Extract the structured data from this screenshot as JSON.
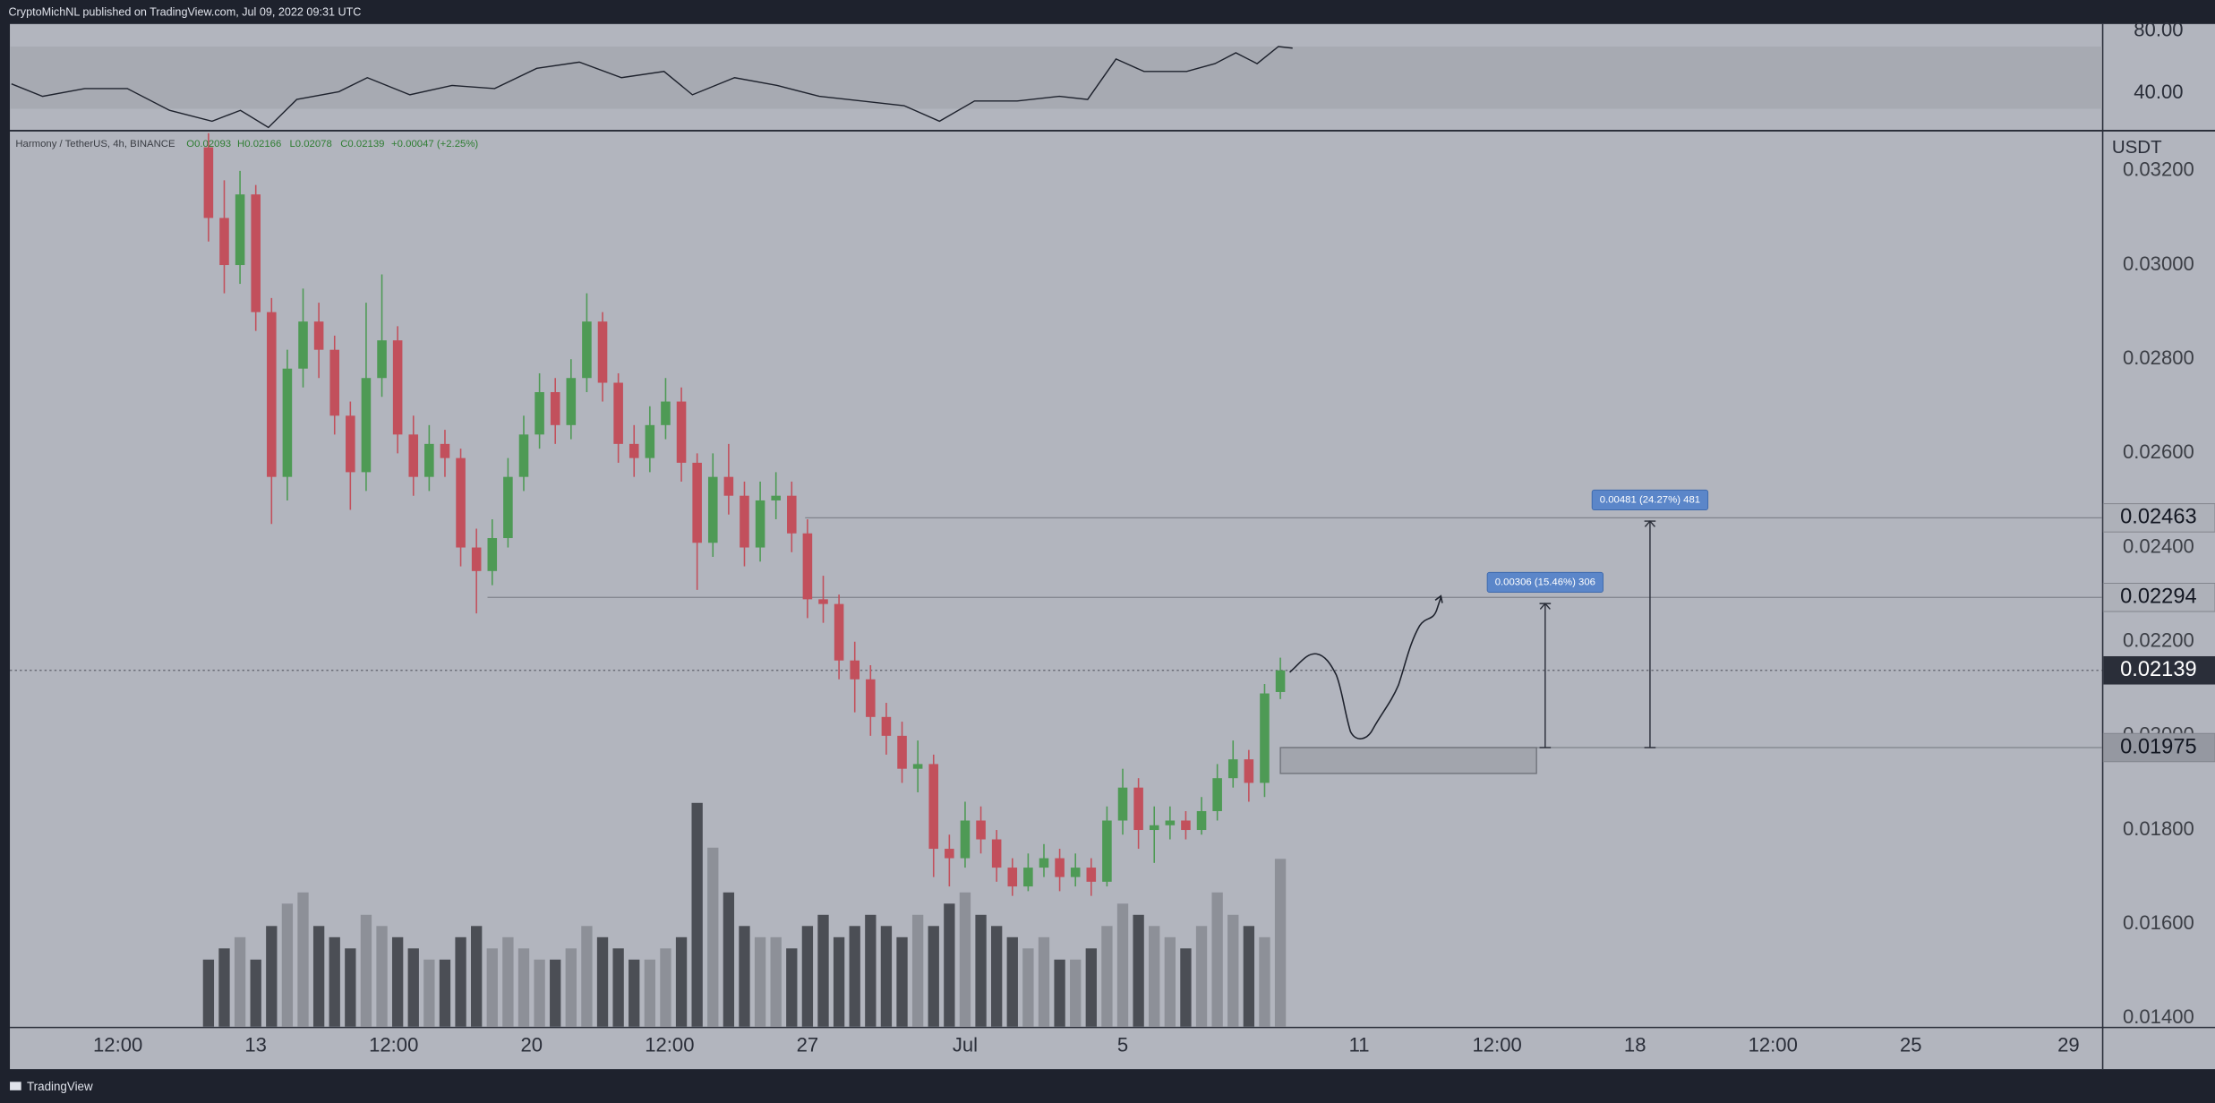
{
  "header": {
    "publisher": "CryptoMichNL published on TradingView.com, Jul 09, 2022 09:31 UTC",
    "footer": "TradingView"
  },
  "chart_data": [
    {
      "type": "line",
      "color": "#1e222d",
      "x": [
        6.8,
        7.59,
        8.66,
        9.74,
        10.81,
        11.89,
        12.61,
        13.32,
        14.04,
        15.11,
        15.83,
        16.91,
        17.98,
        19.06,
        20.13,
        21.21,
        22.28,
        23.36,
        24.08,
        25.15,
        26.23,
        27.3,
        28.38,
        29.45,
        30.35,
        31.24,
        32.32,
        33.39,
        34.11,
        34.83,
        35.54,
        36.62,
        37.34,
        37.87,
        38.41,
        38.95,
        39.31
      ],
      "values": [
        46,
        38,
        43,
        43,
        29,
        22,
        29,
        18,
        36,
        41,
        50,
        39,
        45,
        43,
        56,
        60,
        50,
        54,
        39,
        50,
        45,
        38,
        35,
        32,
        22,
        35,
        35,
        38,
        36,
        62,
        54,
        54,
        59,
        66,
        59,
        70,
        69
      ],
      "xlim": [
        6.76,
        59.85
      ],
      "ylim": [
        16.4,
        84.5
      ],
      "yticks": [
        {
          "value": 80,
          "label": "80.00"
        },
        {
          "value": 40,
          "label": "40.00"
        }
      ],
      "band": [
        30,
        70
      ],
      "band_color": "#a7aab2"
    },
    {
      "type": "candlestick",
      "legend": {
        "symbol": "Harmony / TetherUS, 4h, BINANCE",
        "open": "O0.02093",
        "high": "H0.02166",
        "low": "L0.02078",
        "close": "C0.02139",
        "change": "+0.00047 (+2.25%)"
      },
      "axis_label": "USDT",
      "up_color": "#4e9a55",
      "down_color": "#c2505c",
      "volume_up_color": "#8d9098",
      "volume_down_color": "#4b4e55",
      "grid": false,
      "x": [
        11.8,
        12.2,
        12.6,
        13.0,
        13.4,
        13.8,
        14.2,
        14.6,
        15.0,
        15.4,
        15.8,
        16.2,
        16.6,
        17.0,
        17.4,
        17.8,
        18.2,
        18.6,
        19.0,
        19.4,
        19.8,
        20.2,
        20.6,
        21.0,
        21.4,
        21.8,
        22.2,
        22.6,
        23.0,
        23.4,
        23.8,
        24.2,
        24.6,
        25.0,
        25.4,
        25.8,
        26.2,
        26.6,
        27.0,
        27.4,
        27.8,
        28.2,
        28.6,
        29.0,
        29.4,
        29.8,
        30.2,
        30.6,
        31.0,
        31.4,
        31.8,
        32.2,
        32.6,
        33.0,
        33.4,
        33.8,
        34.2,
        34.6,
        35.0,
        35.4,
        35.8,
        36.2,
        36.6,
        37.0,
        37.4,
        37.8,
        38.2,
        38.6,
        39.0
      ],
      "open": [
        0.0325,
        0.031,
        0.03,
        0.0315,
        0.029,
        0.0255,
        0.0278,
        0.0288,
        0.0282,
        0.0268,
        0.0256,
        0.0276,
        0.0284,
        0.0264,
        0.0255,
        0.0262,
        0.0259,
        0.024,
        0.0235,
        0.0242,
        0.0255,
        0.0264,
        0.0273,
        0.0266,
        0.0276,
        0.0288,
        0.0275,
        0.0262,
        0.0259,
        0.0266,
        0.0271,
        0.0258,
        0.0241,
        0.0255,
        0.0251,
        0.024,
        0.025,
        0.0251,
        0.0243,
        0.0229,
        0.0228,
        0.0216,
        0.0212,
        0.0204,
        0.02,
        0.0193,
        0.0194,
        0.0176,
        0.0174,
        0.0182,
        0.0178,
        0.0172,
        0.0168,
        0.0172,
        0.0174,
        0.017,
        0.0172,
        0.0169,
        0.0182,
        0.0189,
        0.018,
        0.0181,
        0.0182,
        0.018,
        0.0184,
        0.0191,
        0.0195,
        0.019,
        0.02093
      ],
      "high": [
        0.0328,
        0.0318,
        0.032,
        0.0317,
        0.0293,
        0.0282,
        0.0295,
        0.0292,
        0.0285,
        0.0271,
        0.0292,
        0.0298,
        0.0287,
        0.0268,
        0.0266,
        0.0265,
        0.0261,
        0.0244,
        0.0246,
        0.0259,
        0.0268,
        0.0277,
        0.0276,
        0.028,
        0.0294,
        0.029,
        0.0277,
        0.0266,
        0.027,
        0.0276,
        0.0274,
        0.026,
        0.026,
        0.0262,
        0.0254,
        0.0254,
        0.0256,
        0.0254,
        0.0246,
        0.0234,
        0.023,
        0.022,
        0.0215,
        0.0207,
        0.0203,
        0.0199,
        0.0196,
        0.0179,
        0.0186,
        0.0185,
        0.018,
        0.0174,
        0.0175,
        0.0177,
        0.0176,
        0.0175,
        0.0174,
        0.0185,
        0.0193,
        0.0191,
        0.0185,
        0.0185,
        0.0184,
        0.0187,
        0.0194,
        0.0199,
        0.0197,
        0.0211,
        0.02166
      ],
      "low": [
        0.0305,
        0.0294,
        0.0296,
        0.0286,
        0.0245,
        0.025,
        0.0274,
        0.0276,
        0.0264,
        0.0248,
        0.0252,
        0.0272,
        0.026,
        0.0251,
        0.0252,
        0.0255,
        0.0236,
        0.0226,
        0.0232,
        0.024,
        0.0252,
        0.0261,
        0.0262,
        0.0263,
        0.0273,
        0.0271,
        0.0258,
        0.0255,
        0.0256,
        0.0263,
        0.0254,
        0.0231,
        0.0238,
        0.0247,
        0.0236,
        0.0237,
        0.0246,
        0.0239,
        0.0225,
        0.0224,
        0.0212,
        0.0205,
        0.02,
        0.0196,
        0.019,
        0.0188,
        0.017,
        0.0168,
        0.0172,
        0.0175,
        0.0169,
        0.0166,
        0.0167,
        0.017,
        0.0167,
        0.0168,
        0.0166,
        0.0168,
        0.0179,
        0.0176,
        0.0173,
        0.0178,
        0.0178,
        0.0179,
        0.0182,
        0.0189,
        0.0186,
        0.0187,
        0.02078
      ],
      "close": [
        0.031,
        0.03,
        0.0315,
        0.029,
        0.0255,
        0.0278,
        0.0288,
        0.0282,
        0.0268,
        0.0256,
        0.0276,
        0.0284,
        0.0264,
        0.0255,
        0.0262,
        0.0259,
        0.024,
        0.0235,
        0.0242,
        0.0255,
        0.0264,
        0.0273,
        0.0266,
        0.0276,
        0.0288,
        0.0275,
        0.0262,
        0.0259,
        0.0266,
        0.0271,
        0.0258,
        0.0241,
        0.0255,
        0.0251,
        0.024,
        0.025,
        0.0251,
        0.0243,
        0.0229,
        0.0228,
        0.0216,
        0.0212,
        0.0204,
        0.02,
        0.0193,
        0.0194,
        0.0176,
        0.0174,
        0.0182,
        0.0178,
        0.0172,
        0.0168,
        0.0172,
        0.0174,
        0.017,
        0.0172,
        0.0169,
        0.0182,
        0.0189,
        0.018,
        0.0181,
        0.0182,
        0.018,
        0.0184,
        0.0191,
        0.0195,
        0.019,
        0.0209,
        0.02139
      ],
      "volume": [
        30,
        35,
        40,
        30,
        45,
        55,
        60,
        45,
        40,
        35,
        50,
        45,
        40,
        35,
        30,
        30,
        40,
        45,
        35,
        40,
        35,
        30,
        30,
        35,
        45,
        40,
        35,
        30,
        30,
        35,
        40,
        100,
        80,
        60,
        45,
        40,
        40,
        35,
        45,
        50,
        40,
        45,
        50,
        45,
        40,
        50,
        45,
        55,
        60,
        50,
        45,
        40,
        35,
        40,
        30,
        30,
        35,
        45,
        55,
        50,
        45,
        40,
        35,
        45,
        60,
        50,
        45,
        40,
        75
      ],
      "xlim": [
        6.76,
        59.85
      ],
      "xticks": [
        {
          "value": 9.5,
          "label": "12:00"
        },
        13,
        {
          "value": 16.5,
          "label": "12:00"
        },
        20,
        {
          "value": 23.5,
          "label": "12:00"
        },
        27,
        {
          "value": 31,
          "label": "Jul"
        },
        {
          "value": 35,
          "label": "5"
        },
        {
          "value": 41,
          "label": "11"
        },
        {
          "value": 44.5,
          "label": "12:00"
        },
        {
          "value": 48,
          "label": "18"
        },
        {
          "value": 51.5,
          "label": "12:00"
        },
        {
          "value": 55,
          "label": "25"
        },
        {
          "value": 59,
          "label": "29"
        }
      ],
      "ylim": [
        0.01382,
        0.03284
      ],
      "yticks": [
        {
          "value": 0.014,
          "label": "0.01400"
        },
        {
          "value": 0.016,
          "label": "0.01600"
        },
        {
          "value": 0.018,
          "label": "0.01800"
        },
        {
          "value": 0.02,
          "label": "0.02000"
        },
        {
          "value": 0.022,
          "label": "0.02200"
        },
        {
          "value": 0.024,
          "label": "0.02400"
        },
        {
          "value": 0.026,
          "label": "0.02600"
        },
        {
          "value": 0.028,
          "label": "0.02800"
        },
        {
          "value": 0.03,
          "label": "0.03000"
        },
        {
          "value": 0.032,
          "label": "0.03200"
        }
      ],
      "levels": [
        {
          "value": 0.02463,
          "label": "0.02463",
          "from": 26.94
        },
        {
          "value": 0.02294,
          "label": "0.02294",
          "from": 18.88
        },
        {
          "value": 0.01975,
          "label": "0.01975",
          "from": 39.06
        }
      ],
      "last_price": {
        "value": 0.02139,
        "label": "0.02139"
      },
      "zone": {
        "x": [
          39.0,
          45.5
        ],
        "y": [
          0.0192,
          0.01975
        ]
      },
      "measures": [
        {
          "x": 45.72,
          "from": 0.01975,
          "change": 0.00306,
          "label": "0.00306 (15.46%) 306"
        },
        {
          "x": 48.38,
          "from": 0.01975,
          "change": 0.00481,
          "label": "0.00481 (24.27%) 481"
        }
      ]
    }
  ]
}
